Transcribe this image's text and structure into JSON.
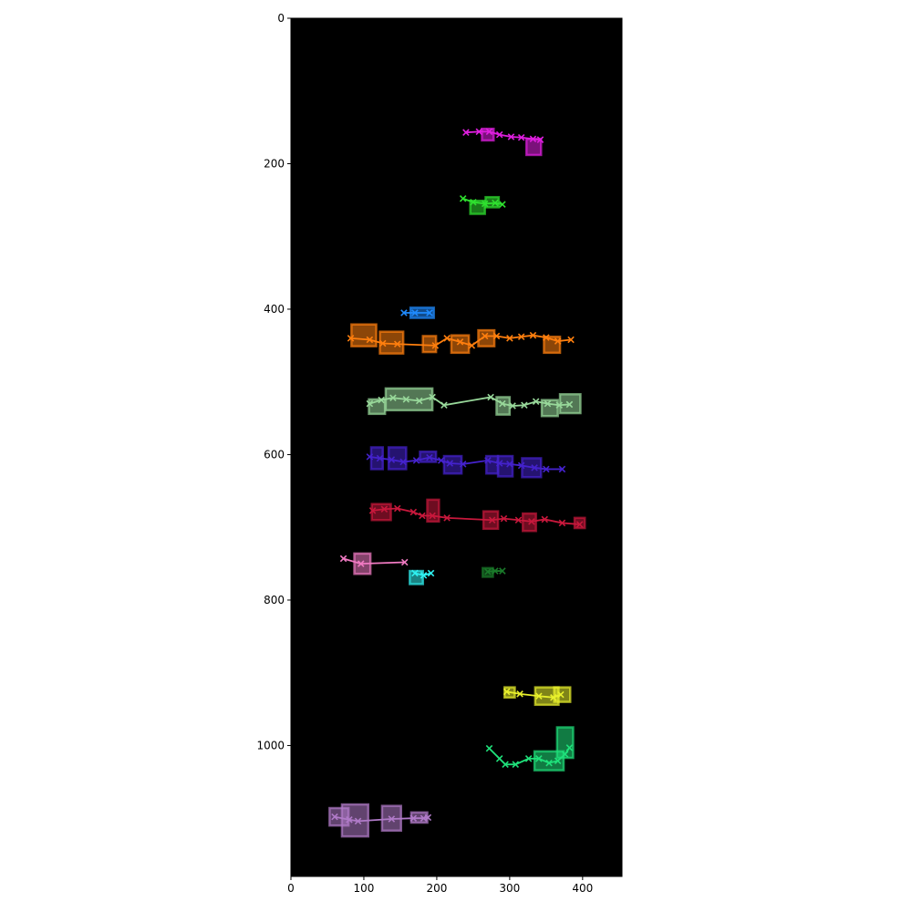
{
  "chart_data": {
    "type": "scatter",
    "title": "",
    "xlabel": "",
    "ylabel": "",
    "xlim": [
      0,
      454
    ],
    "ylim": [
      1180,
      0
    ],
    "y_inverted": true,
    "background": "#000000",
    "xticks": [
      0,
      100,
      200,
      300,
      400
    ],
    "yticks": [
      0,
      200,
      400,
      600,
      800,
      1000
    ],
    "grid": false,
    "series": [
      {
        "color": "#e01fe0",
        "points": [
          [
            240,
            157
          ],
          [
            258,
            156
          ],
          [
            272,
            156
          ],
          [
            286,
            160
          ],
          [
            302,
            163
          ],
          [
            316,
            164
          ],
          [
            332,
            166
          ],
          [
            342,
            167
          ]
        ],
        "boxes": [
          [
            270,
            160,
            16,
            16
          ],
          [
            333,
            177,
            20,
            22
          ]
        ]
      },
      {
        "color": "#2fe02f",
        "points": [
          [
            236,
            248
          ],
          [
            250,
            253
          ],
          [
            266,
            255
          ],
          [
            280,
            254
          ],
          [
            290,
            256
          ]
        ],
        "boxes": [
          [
            256,
            260,
            20,
            18
          ],
          [
            276,
            253,
            18,
            14
          ]
        ]
      },
      {
        "color": "#1f8bff",
        "points": [
          [
            155,
            405
          ],
          [
            170,
            405
          ],
          [
            190,
            405
          ]
        ],
        "boxes": [
          [
            180,
            405,
            32,
            14
          ]
        ]
      },
      {
        "color": "#ff7f0e",
        "points": [
          [
            82,
            440
          ],
          [
            108,
            442
          ],
          [
            126,
            447
          ],
          [
            146,
            448
          ],
          [
            198,
            450
          ],
          [
            214,
            440
          ],
          [
            232,
            445
          ],
          [
            248,
            450
          ],
          [
            266,
            437
          ],
          [
            282,
            437
          ],
          [
            300,
            440
          ],
          [
            316,
            438
          ],
          [
            332,
            436
          ],
          [
            350,
            439
          ],
          [
            366,
            444
          ],
          [
            384,
            442
          ]
        ],
        "boxes": [
          [
            100,
            436,
            34,
            30
          ],
          [
            138,
            446,
            32,
            30
          ],
          [
            190,
            448,
            18,
            22
          ],
          [
            232,
            448,
            24,
            24
          ],
          [
            268,
            440,
            22,
            22
          ],
          [
            358,
            449,
            22,
            22
          ]
        ]
      },
      {
        "color": "#98d89a",
        "points": [
          [
            108,
            530
          ],
          [
            124,
            525
          ],
          [
            140,
            522
          ],
          [
            158,
            524
          ],
          [
            176,
            526
          ],
          [
            194,
            521
          ],
          [
            210,
            532
          ],
          [
            274,
            521
          ],
          [
            290,
            530
          ],
          [
            304,
            533
          ],
          [
            320,
            532
          ],
          [
            336,
            527
          ],
          [
            352,
            530
          ],
          [
            368,
            532
          ],
          [
            382,
            531
          ]
        ],
        "boxes": [
          [
            118,
            534,
            22,
            20
          ],
          [
            162,
            524,
            64,
            30
          ],
          [
            291,
            533,
            18,
            24
          ],
          [
            355,
            536,
            22,
            22
          ],
          [
            383,
            530,
            28,
            26
          ]
        ]
      },
      {
        "color": "#4422cc",
        "points": [
          [
            108,
            603
          ],
          [
            122,
            605
          ],
          [
            138,
            607
          ],
          [
            154,
            610
          ],
          [
            172,
            608
          ],
          [
            190,
            604
          ],
          [
            206,
            608
          ],
          [
            218,
            612
          ],
          [
            236,
            613
          ],
          [
            270,
            608
          ],
          [
            286,
            612
          ],
          [
            300,
            613
          ],
          [
            316,
            615
          ],
          [
            334,
            618
          ],
          [
            350,
            620
          ],
          [
            372,
            620
          ]
        ],
        "boxes": [
          [
            118,
            605,
            16,
            30
          ],
          [
            146,
            605,
            24,
            30
          ],
          [
            188,
            603,
            22,
            14
          ],
          [
            222,
            614,
            24,
            24
          ],
          [
            276,
            614,
            16,
            24
          ],
          [
            294,
            616,
            20,
            28
          ],
          [
            330,
            618,
            26,
            26
          ]
        ]
      },
      {
        "color": "#c8183c",
        "points": [
          [
            112,
            677
          ],
          [
            128,
            675
          ],
          [
            146,
            674
          ],
          [
            168,
            679
          ],
          [
            180,
            684
          ],
          [
            194,
            684
          ],
          [
            214,
            687
          ],
          [
            276,
            690
          ],
          [
            292,
            688
          ],
          [
            312,
            690
          ],
          [
            330,
            692
          ],
          [
            348,
            689
          ],
          [
            372,
            694
          ],
          [
            396,
            696
          ]
        ],
        "boxes": [
          [
            124,
            679,
            26,
            22
          ],
          [
            195,
            677,
            16,
            30
          ],
          [
            274,
            690,
            20,
            24
          ],
          [
            327,
            693,
            18,
            24
          ],
          [
            396,
            694,
            14,
            14
          ]
        ]
      },
      {
        "color": "#f07ac2",
        "points": [
          [
            72,
            743
          ],
          [
            96,
            750
          ],
          [
            156,
            748
          ]
        ],
        "boxes": [
          [
            98,
            750,
            22,
            28
          ]
        ]
      },
      {
        "color": "#2ff0f0",
        "points": [
          [
            170,
            763
          ],
          [
            182,
            766
          ],
          [
            192,
            763
          ]
        ],
        "boxes": [
          [
            172,
            769,
            18,
            18
          ]
        ]
      },
      {
        "color": "#1a7a2a",
        "points": [
          [
            270,
            761
          ],
          [
            280,
            760
          ],
          [
            290,
            760
          ]
        ],
        "boxes": [
          [
            270,
            762,
            14,
            12
          ]
        ]
      },
      {
        "color": "#e8f02c",
        "points": [
          [
            296,
            926
          ],
          [
            314,
            929
          ],
          [
            340,
            932
          ],
          [
            360,
            934
          ],
          [
            370,
            930
          ]
        ],
        "boxes": [
          [
            300,
            927,
            14,
            14
          ],
          [
            351,
            932,
            32,
            24
          ],
          [
            372,
            930,
            22,
            20
          ]
        ]
      },
      {
        "color": "#1fe07a",
        "points": [
          [
            272,
            1004
          ],
          [
            286,
            1018
          ],
          [
            294,
            1026
          ],
          [
            308,
            1026
          ],
          [
            326,
            1018
          ],
          [
            340,
            1018
          ],
          [
            354,
            1024
          ],
          [
            366,
            1021
          ],
          [
            376,
            1012
          ],
          [
            382,
            1003
          ]
        ],
        "boxes": [
          [
            354,
            1021,
            40,
            26
          ],
          [
            376,
            996,
            22,
            42
          ]
        ]
      },
      {
        "color": "#b07ac8",
        "points": [
          [
            60,
            1098
          ],
          [
            80,
            1102
          ],
          [
            92,
            1104
          ],
          [
            138,
            1101
          ],
          [
            168,
            1100
          ],
          [
            182,
            1100
          ],
          [
            188,
            1099
          ]
        ],
        "boxes": [
          [
            66,
            1098,
            26,
            24
          ],
          [
            88,
            1103,
            36,
            44
          ],
          [
            138,
            1100,
            26,
            34
          ],
          [
            176,
            1099,
            22,
            14
          ]
        ]
      }
    ]
  }
}
